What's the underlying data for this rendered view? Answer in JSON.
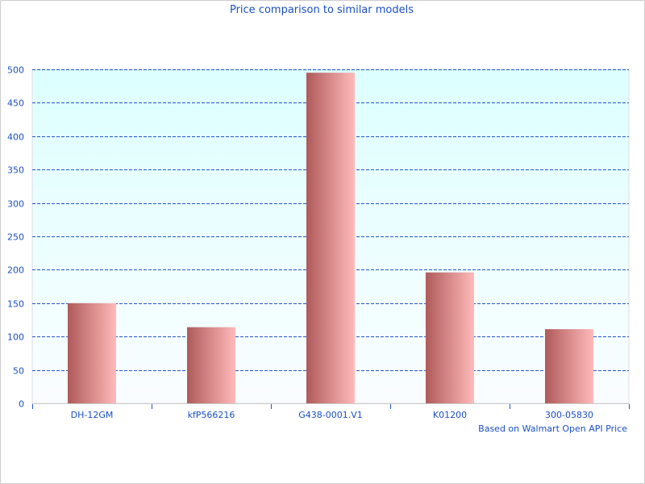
{
  "chart_data": {
    "type": "bar",
    "title": "Price comparison to similar models",
    "xlabel": "Based on Walmart Open API Price",
    "ylabel": "",
    "categories": [
      "DH-12GM",
      "kfP566216",
      "G438-0001.V1",
      "K01200",
      "300-05830"
    ],
    "values": [
      150,
      114,
      495,
      196,
      111
    ],
    "ylim": [
      0,
      500
    ],
    "yticks": [
      0,
      50,
      100,
      150,
      200,
      250,
      300,
      350,
      400,
      450,
      500
    ],
    "grid": true,
    "legend": "none",
    "colors": {
      "bar_left": "#b05a5a",
      "bar_right": "#ffbaba",
      "plot_bg_top": "#ddffff",
      "plot_bg_bottom": "#fafdff",
      "grid": "#2255cc",
      "text": "#1a4fc4"
    }
  }
}
